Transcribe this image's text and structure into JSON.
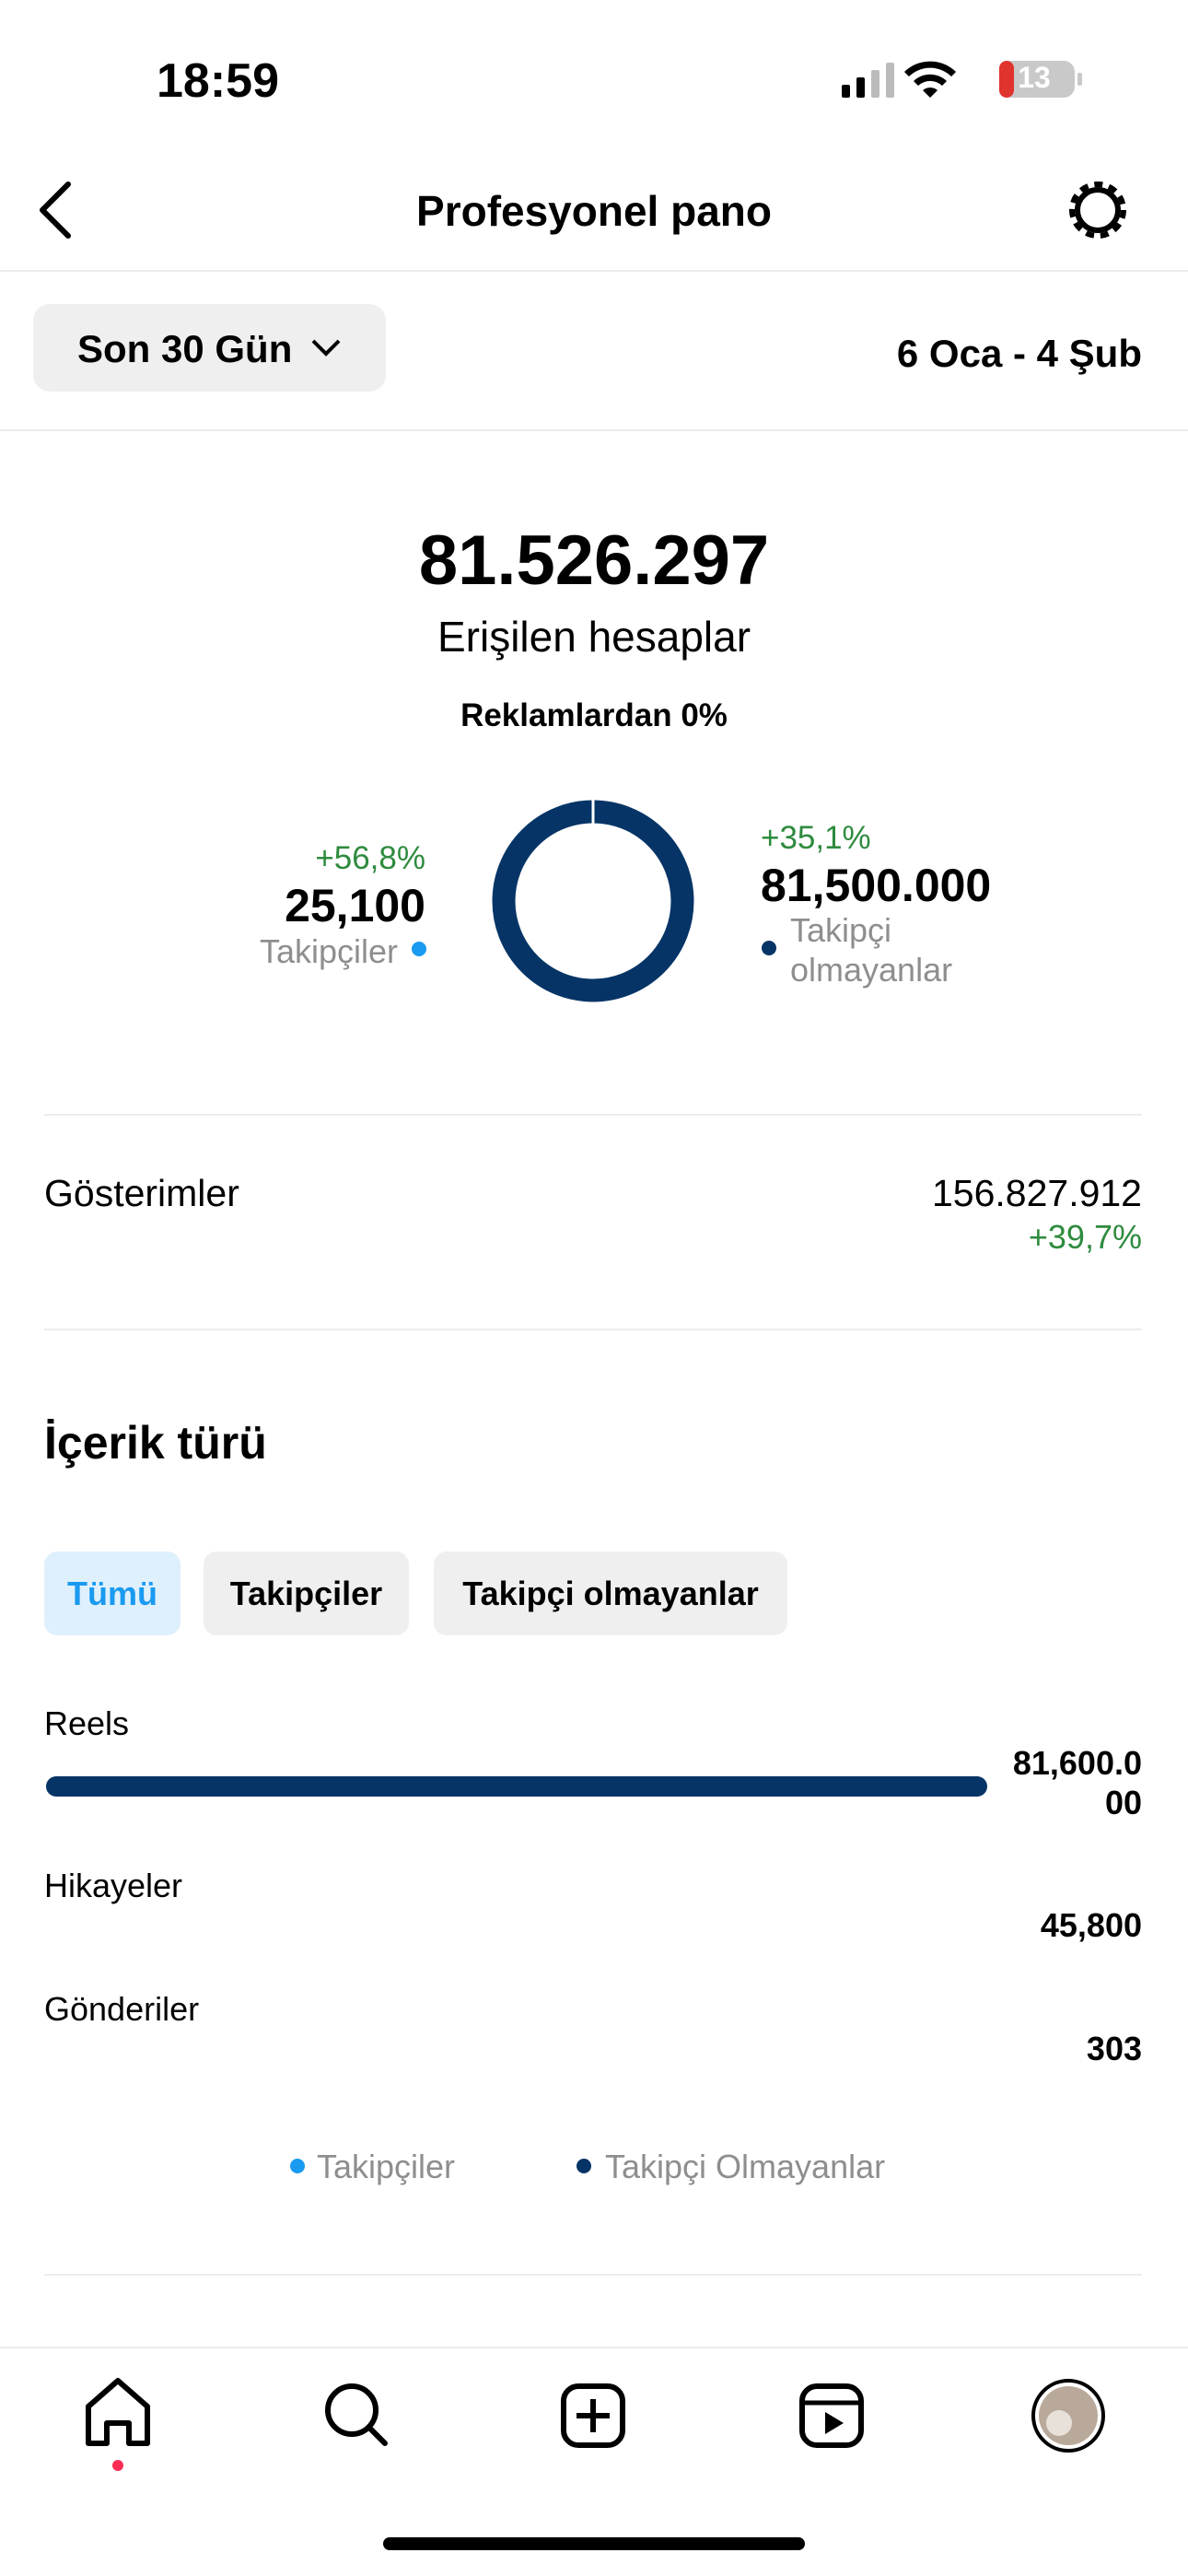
{
  "status": {
    "time": "18:59",
    "battery": "13"
  },
  "header": {
    "title": "Profesyonel pano"
  },
  "filter": {
    "period": "Son 30 Gün",
    "date_range": "6 Oca - 4 Şub"
  },
  "reach": {
    "total": "81.526.297",
    "label": "Erişilen hesaplar",
    "ads": "Reklamlardan 0%",
    "followers": {
      "change": "+56,8%",
      "value": "25,100",
      "label": "Takipçiler"
    },
    "non_followers": {
      "change": "+35,1%",
      "value": "81,500.000",
      "label": "Takipçi olmayanlar"
    }
  },
  "impressions": {
    "label": "Gösterimler",
    "value": "156.827.912",
    "change": "+39,7%"
  },
  "content_type": {
    "title": "İçerik türü",
    "tabs": [
      "Tümü",
      "Takipçiler",
      "Takipçi olmayanlar"
    ],
    "rows": [
      {
        "label": "Reels",
        "value": "81,600.000"
      },
      {
        "label": "Hikayeler",
        "value": "45,800"
      },
      {
        "label": "Gönderiler",
        "value": "303"
      }
    ],
    "legend": [
      "Takipçiler",
      "Takipçi Olmayanlar"
    ]
  }
}
